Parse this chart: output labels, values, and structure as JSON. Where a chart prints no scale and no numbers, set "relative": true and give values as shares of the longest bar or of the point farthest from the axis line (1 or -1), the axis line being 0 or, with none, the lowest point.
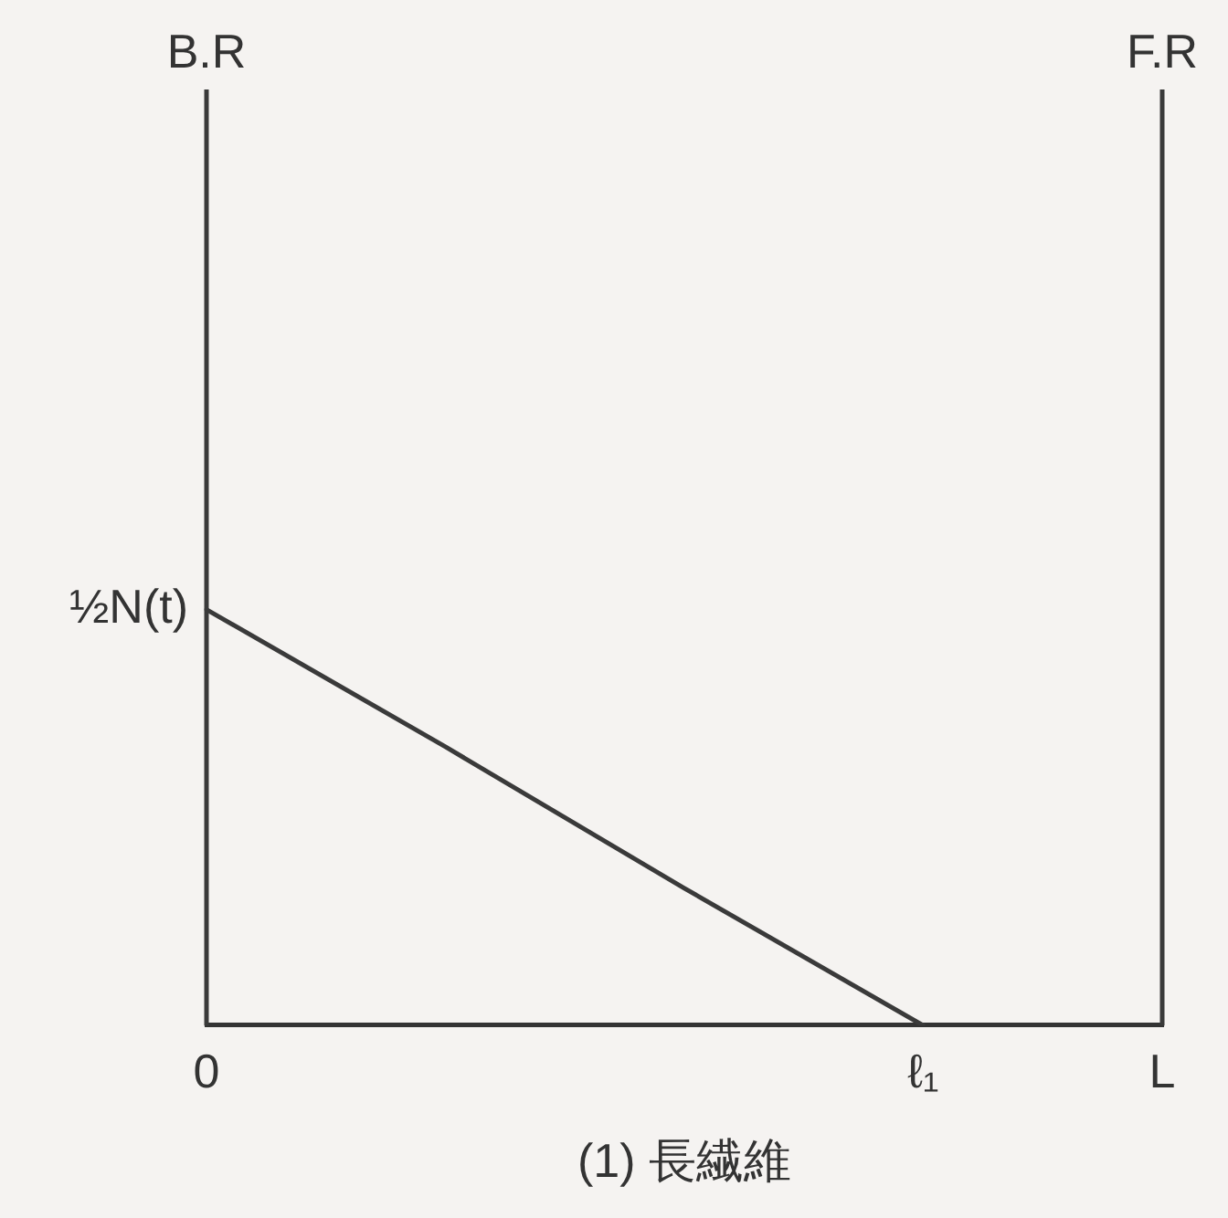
{
  "chart_data": {
    "type": "line",
    "xlabel": "(1) 長繊維",
    "categories": [
      "0",
      null,
      null,
      "ℓ₁",
      "L"
    ],
    "series": [
      {
        "color": "#3a3a3a",
        "values": [
          1,
          0.67,
          0.33,
          0,
          null
        ]
      }
    ],
    "relative": true,
    "ref_lines": [
      {
        "axis": "x",
        "value": "0",
        "label": "B.R",
        "color": "#3a3a3a"
      },
      {
        "axis": "x",
        "value": "L",
        "label": "F.R",
        "color": "#3a3a3a"
      }
    ],
    "annotations": [
      "½N(t)"
    ],
    "grid": false,
    "legend": false,
    "marker": "none",
    "line_style": "solid"
  }
}
